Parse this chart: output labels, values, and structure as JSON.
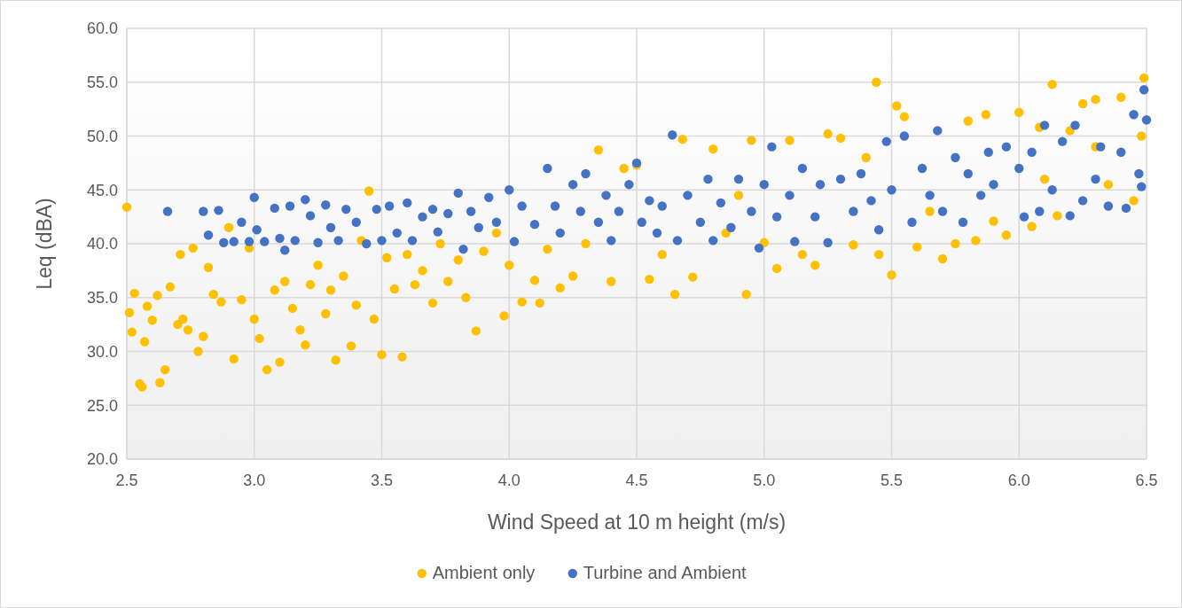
{
  "chart_data": {
    "type": "scatter",
    "xlabel": "Wind Speed at 10 m height (m/s)",
    "ylabel": "Leq (dBA)",
    "xlim": [
      2.5,
      6.5
    ],
    "xticks": [
      {
        "value": 2.5,
        "label": "2.5"
      },
      {
        "value": 3,
        "label": "3.0"
      },
      {
        "value": 3.5,
        "label": "3.5"
      },
      {
        "value": 4,
        "label": "4.0"
      },
      {
        "value": 4.5,
        "label": "4.5"
      },
      {
        "value": 5,
        "label": "5.0"
      },
      {
        "value": 5.5,
        "label": "5.5"
      },
      {
        "value": 6,
        "label": "6.0"
      },
      {
        "value": 6.5,
        "label": "6.5"
      }
    ],
    "ylim": [
      20,
      60
    ],
    "yticks": [
      {
        "value": 20,
        "label": "20.0"
      },
      {
        "value": 25,
        "label": "25.0"
      },
      {
        "value": 30,
        "label": "30.0"
      },
      {
        "value": 35,
        "label": "35.0"
      },
      {
        "value": 40,
        "label": "40.0"
      },
      {
        "value": 45,
        "label": "45.0"
      },
      {
        "value": 50,
        "label": "50.0"
      },
      {
        "value": 55,
        "label": "55.0"
      },
      {
        "value": 60,
        "label": "60.0"
      }
    ],
    "grid": true,
    "legend": "bottom",
    "marker": "circle",
    "series": [
      {
        "name": "Ambient only",
        "color": "#ffc000",
        "x": [
          2.5,
          2.51,
          2.52,
          2.53,
          2.55,
          2.56,
          2.57,
          2.58,
          2.6,
          2.62,
          2.63,
          2.65,
          2.67,
          2.7,
          2.71,
          2.72,
          2.74,
          2.76,
          2.78,
          2.8,
          2.82,
          2.84,
          2.87,
          2.9,
          2.92,
          2.95,
          2.98,
          3.0,
          3.02,
          3.05,
          3.08,
          3.1,
          3.12,
          3.15,
          3.18,
          3.2,
          3.22,
          3.25,
          3.28,
          3.3,
          3.32,
          3.35,
          3.38,
          3.4,
          3.42,
          3.45,
          3.47,
          3.5,
          3.52,
          3.55,
          3.58,
          3.6,
          3.63,
          3.66,
          3.7,
          3.73,
          3.76,
          3.8,
          3.83,
          3.87,
          3.9,
          3.95,
          3.98,
          4.0,
          4.05,
          4.1,
          4.12,
          4.15,
          4.2,
          4.25,
          4.3,
          4.35,
          4.4,
          4.45,
          4.5,
          4.55,
          4.6,
          4.65,
          4.68,
          4.72,
          4.8,
          4.85,
          4.93,
          4.95,
          5.0,
          5.05,
          5.1,
          5.15,
          5.2,
          5.25,
          5.3,
          5.35,
          5.44,
          5.45,
          5.5,
          5.52,
          5.55,
          5.6,
          5.65,
          5.7,
          5.75,
          5.8,
          5.83,
          5.87,
          5.9,
          5.95,
          6.0,
          6.05,
          6.08,
          6.13,
          6.15,
          6.2,
          6.25,
          6.3,
          6.35,
          6.4,
          6.45,
          6.49,
          6.48,
          6.1,
          5.4,
          4.9,
          6.3
        ],
        "values": [
          43.4,
          33.6,
          31.8,
          35.4,
          27.0,
          26.7,
          30.9,
          34.2,
          32.9,
          35.2,
          27.1,
          28.3,
          36.0,
          32.5,
          39.0,
          33.0,
          32.0,
          39.6,
          30.0,
          31.4,
          37.8,
          35.3,
          34.6,
          41.5,
          29.3,
          34.8,
          39.6,
          33.0,
          31.2,
          28.3,
          35.7,
          29.0,
          36.5,
          34.0,
          32.0,
          30.6,
          36.2,
          38.0,
          33.5,
          35.7,
          29.2,
          37.0,
          30.5,
          34.3,
          40.3,
          44.9,
          33.0,
          29.7,
          38.7,
          35.8,
          29.5,
          39.0,
          36.2,
          37.5,
          34.5,
          40.0,
          36.5,
          38.5,
          35.0,
          31.9,
          39.3,
          41.0,
          33.3,
          38.0,
          34.6,
          36.6,
          34.5,
          39.5,
          35.9,
          37.0,
          40.0,
          48.7,
          36.5,
          47.0,
          47.3,
          36.7,
          39.0,
          35.3,
          49.7,
          36.9,
          48.8,
          41.0,
          35.3,
          49.6,
          40.1,
          37.7,
          49.6,
          39.0,
          38.0,
          50.2,
          49.8,
          39.9,
          55.0,
          39.0,
          37.1,
          52.8,
          51.8,
          39.7,
          43.0,
          38.6,
          40.0,
          51.4,
          40.3,
          52.0,
          42.1,
          40.8,
          52.2,
          41.6,
          50.8,
          54.8,
          42.6,
          50.5,
          53.0,
          53.4,
          45.5,
          53.6,
          44.0,
          55.4,
          50.0,
          46.0,
          48.0,
          44.5,
          49.0
        ]
      },
      {
        "name": "Turbine and Ambient",
        "color": "#4472c4",
        "x": [
          2.66,
          2.8,
          2.82,
          2.86,
          2.88,
          2.92,
          2.95,
          2.98,
          3.0,
          3.01,
          3.04,
          3.08,
          3.1,
          3.12,
          3.14,
          3.16,
          3.2,
          3.22,
          3.25,
          3.28,
          3.3,
          3.33,
          3.36,
          3.4,
          3.44,
          3.48,
          3.5,
          3.53,
          3.56,
          3.6,
          3.62,
          3.66,
          3.7,
          3.72,
          3.76,
          3.8,
          3.82,
          3.85,
          3.88,
          3.92,
          3.95,
          4.0,
          4.02,
          4.05,
          4.1,
          4.15,
          4.18,
          4.2,
          4.25,
          4.28,
          4.3,
          4.35,
          4.38,
          4.4,
          4.43,
          4.47,
          4.5,
          4.52,
          4.55,
          4.58,
          4.6,
          4.64,
          4.66,
          4.7,
          4.75,
          4.78,
          4.8,
          4.83,
          4.87,
          4.9,
          4.95,
          4.98,
          5.0,
          5.03,
          5.05,
          5.1,
          5.12,
          5.15,
          5.2,
          5.22,
          5.25,
          5.3,
          5.35,
          5.38,
          5.42,
          5.45,
          5.48,
          5.5,
          5.55,
          5.58,
          5.62,
          5.65,
          5.68,
          5.7,
          5.75,
          5.78,
          5.8,
          5.85,
          5.88,
          5.9,
          5.95,
          6.0,
          6.02,
          6.05,
          6.08,
          6.1,
          6.13,
          6.17,
          6.2,
          6.22,
          6.25,
          6.3,
          6.32,
          6.35,
          6.4,
          6.42,
          6.45,
          6.47,
          6.49,
          6.5,
          6.48
        ],
        "values": [
          43.0,
          43.0,
          40.8,
          43.1,
          40.1,
          40.2,
          42.0,
          40.2,
          44.3,
          41.3,
          40.2,
          43.3,
          40.5,
          39.4,
          43.5,
          40.3,
          44.1,
          42.6,
          40.1,
          43.6,
          41.5,
          40.3,
          43.2,
          42.0,
          40.0,
          43.2,
          40.3,
          43.5,
          41.0,
          43.8,
          40.3,
          42.5,
          43.2,
          41.1,
          42.8,
          44.7,
          39.5,
          43.0,
          41.5,
          44.3,
          42.0,
          45.0,
          40.2,
          43.5,
          41.8,
          47.0,
          43.5,
          41.0,
          45.5,
          43.0,
          46.5,
          42.0,
          44.5,
          40.3,
          43.0,
          45.5,
          47.5,
          42.0,
          44.0,
          41.0,
          43.5,
          50.1,
          40.3,
          44.5,
          42.0,
          46.0,
          40.3,
          43.8,
          41.5,
          46.0,
          43.0,
          39.6,
          45.5,
          49.0,
          42.5,
          44.5,
          40.2,
          47.0,
          42.5,
          45.5,
          40.1,
          46.0,
          43.0,
          46.5,
          44.0,
          41.3,
          49.5,
          45.0,
          50.0,
          42.0,
          47.0,
          44.5,
          50.5,
          43.0,
          48.0,
          42.0,
          46.5,
          44.5,
          48.5,
          45.5,
          49.0,
          47.0,
          42.5,
          48.5,
          43.0,
          51.0,
          45.0,
          49.5,
          42.6,
          51.0,
          44.0,
          46.0,
          49.0,
          43.5,
          48.5,
          43.3,
          52.0,
          46.5,
          54.3,
          51.5,
          45.3
        ]
      }
    ]
  }
}
